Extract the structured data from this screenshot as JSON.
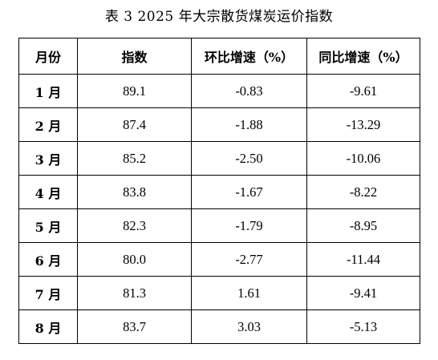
{
  "caption": "表 3  2025 年大宗散货煤炭运价指数",
  "table": {
    "headers": [
      "月份",
      "指数",
      "环比增速（%）",
      "同比增速（%）"
    ],
    "rows": [
      {
        "month": "1 月",
        "index": "89.1",
        "mom": "-0.83",
        "yoy": "-9.61"
      },
      {
        "month": "2 月",
        "index": "87.4",
        "mom": "-1.88",
        "yoy": "-13.29"
      },
      {
        "month": "3 月",
        "index": "85.2",
        "mom": "-2.50",
        "yoy": "-10.06"
      },
      {
        "month": "4 月",
        "index": "83.8",
        "mom": "-1.67",
        "yoy": "-8.22"
      },
      {
        "month": "5 月",
        "index": "82.3",
        "mom": "-1.79",
        "yoy": "-8.95"
      },
      {
        "month": "6 月",
        "index": "80.0",
        "mom": "-2.77",
        "yoy": "-11.44"
      },
      {
        "month": "7 月",
        "index": "81.3",
        "mom": "1.61",
        "yoy": "-9.41"
      },
      {
        "month": "8 月",
        "index": "83.7",
        "mom": "3.03",
        "yoy": "-5.13"
      }
    ]
  }
}
